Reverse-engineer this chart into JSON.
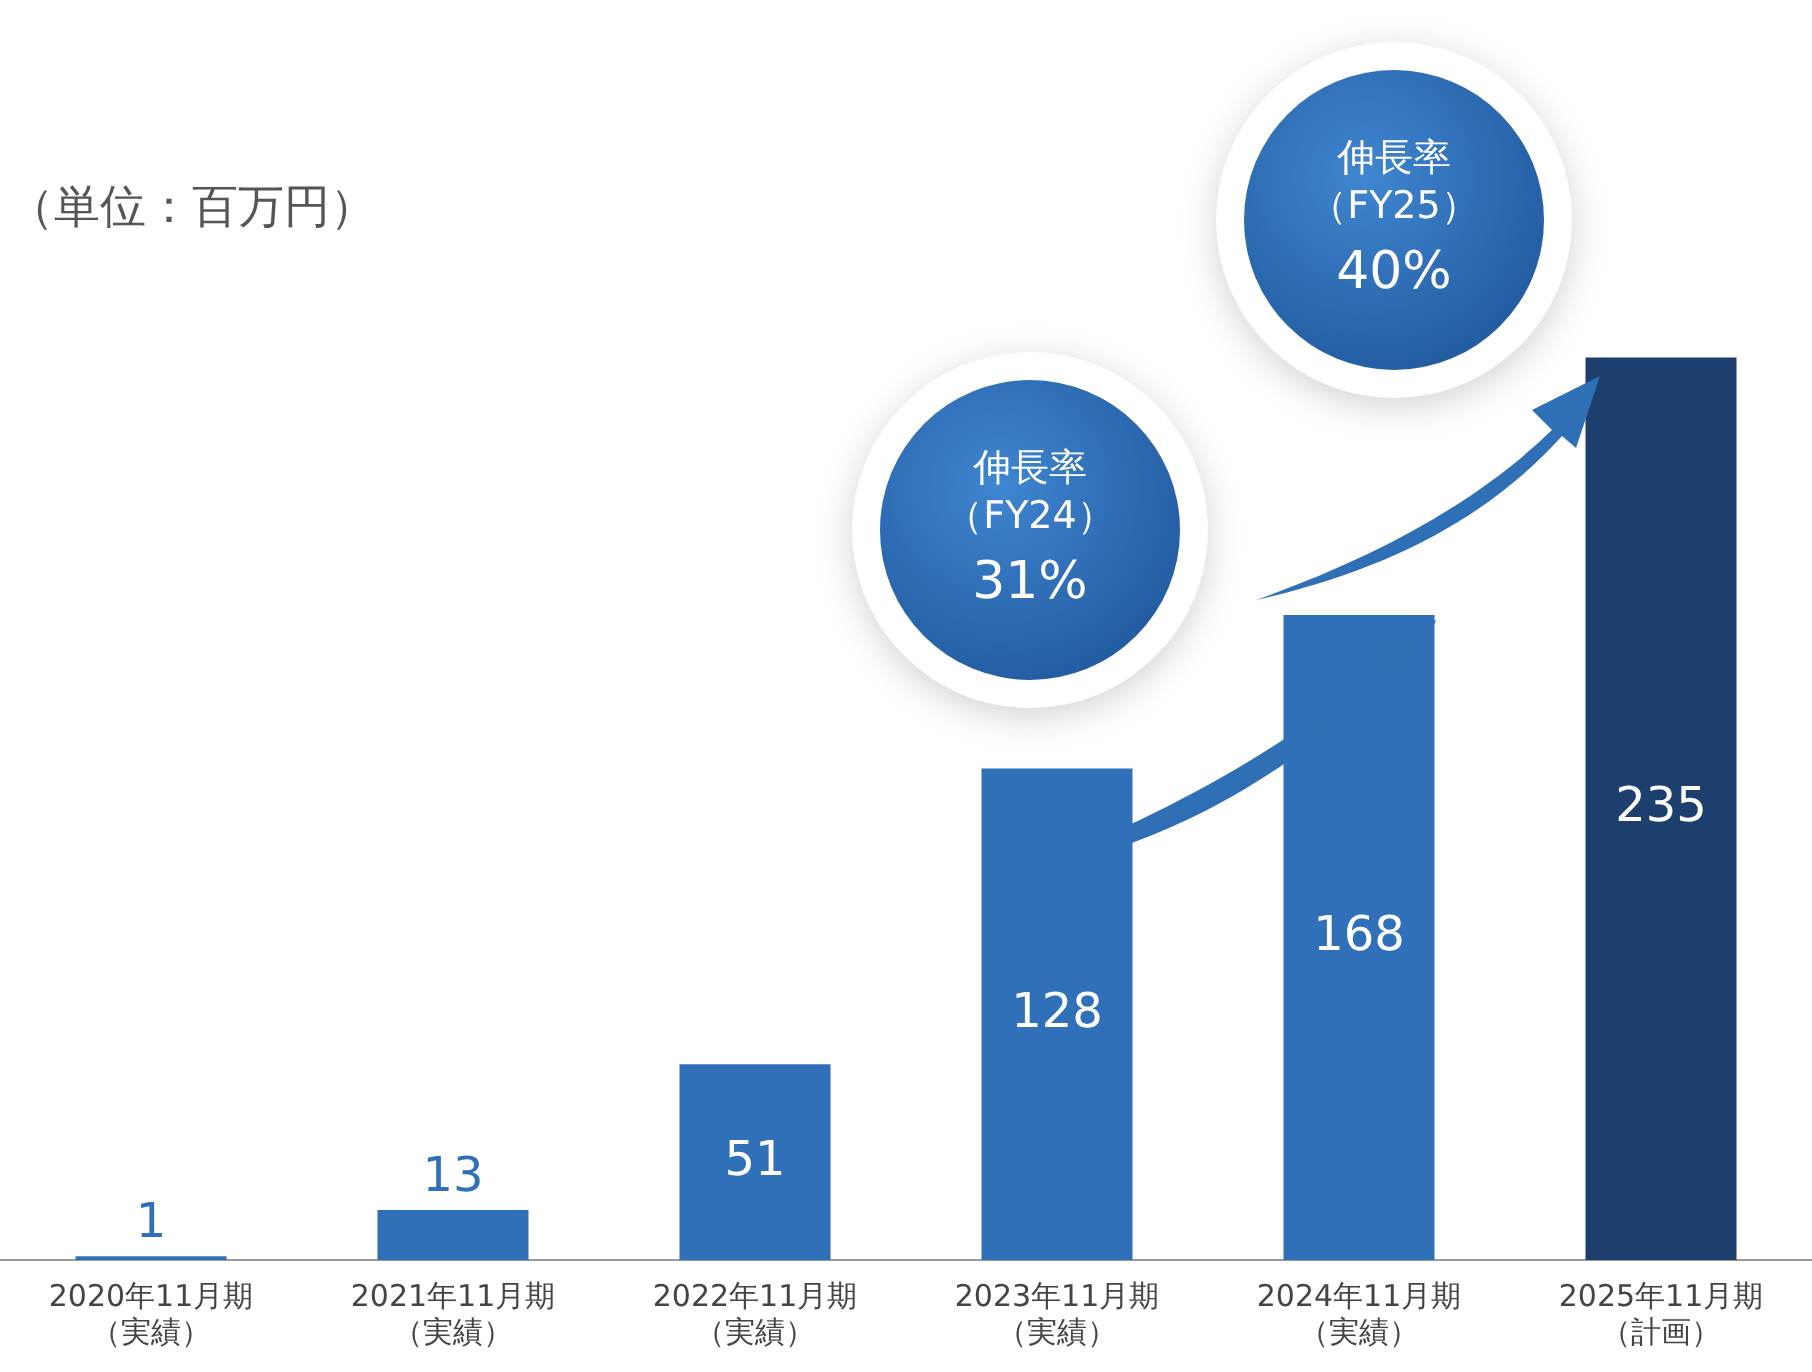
{
  "chart_data": {
    "type": "bar",
    "categories": [
      "2020年11月期（実績）",
      "2021年11月期（実績）",
      "2022年11月期（実績）",
      "2023年11月期（実績）",
      "2024年11月期（実績）",
      "2025年11月期（計画）"
    ],
    "values": [
      1,
      13,
      51,
      128,
      168,
      235
    ],
    "colors": [
      "#2f70b8",
      "#2f70b8",
      "#2f70b8",
      "#2f70b8",
      "#2f70b8",
      "#1c3f6e"
    ],
    "data_labels": true,
    "grid": false,
    "legend": false,
    "annotations": [
      "（単位：百万円）",
      "伸長率（FY24）31%",
      "伸長率（FY25）40%"
    ]
  }
}
